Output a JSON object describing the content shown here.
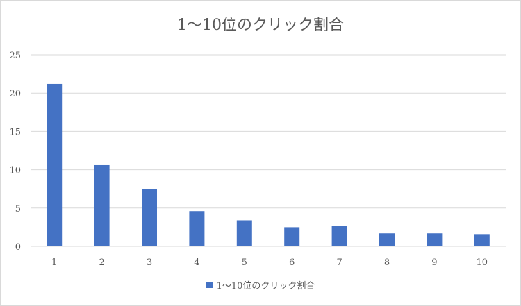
{
  "chart_data": {
    "type": "bar",
    "title": "1〜10位のクリック割合",
    "categories": [
      "1",
      "2",
      "3",
      "4",
      "5",
      "6",
      "7",
      "8",
      "9",
      "10"
    ],
    "series": [
      {
        "name": "1〜10位のクリック割合",
        "values": [
          21.2,
          10.6,
          7.5,
          4.6,
          3.4,
          2.5,
          2.7,
          1.7,
          1.7,
          1.6
        ],
        "color": "#4472c4"
      }
    ],
    "ylim": [
      0,
      25
    ],
    "yticks": [
      "0",
      "5",
      "10",
      "15",
      "20",
      "25"
    ],
    "grid": true,
    "legend": "bottom"
  }
}
